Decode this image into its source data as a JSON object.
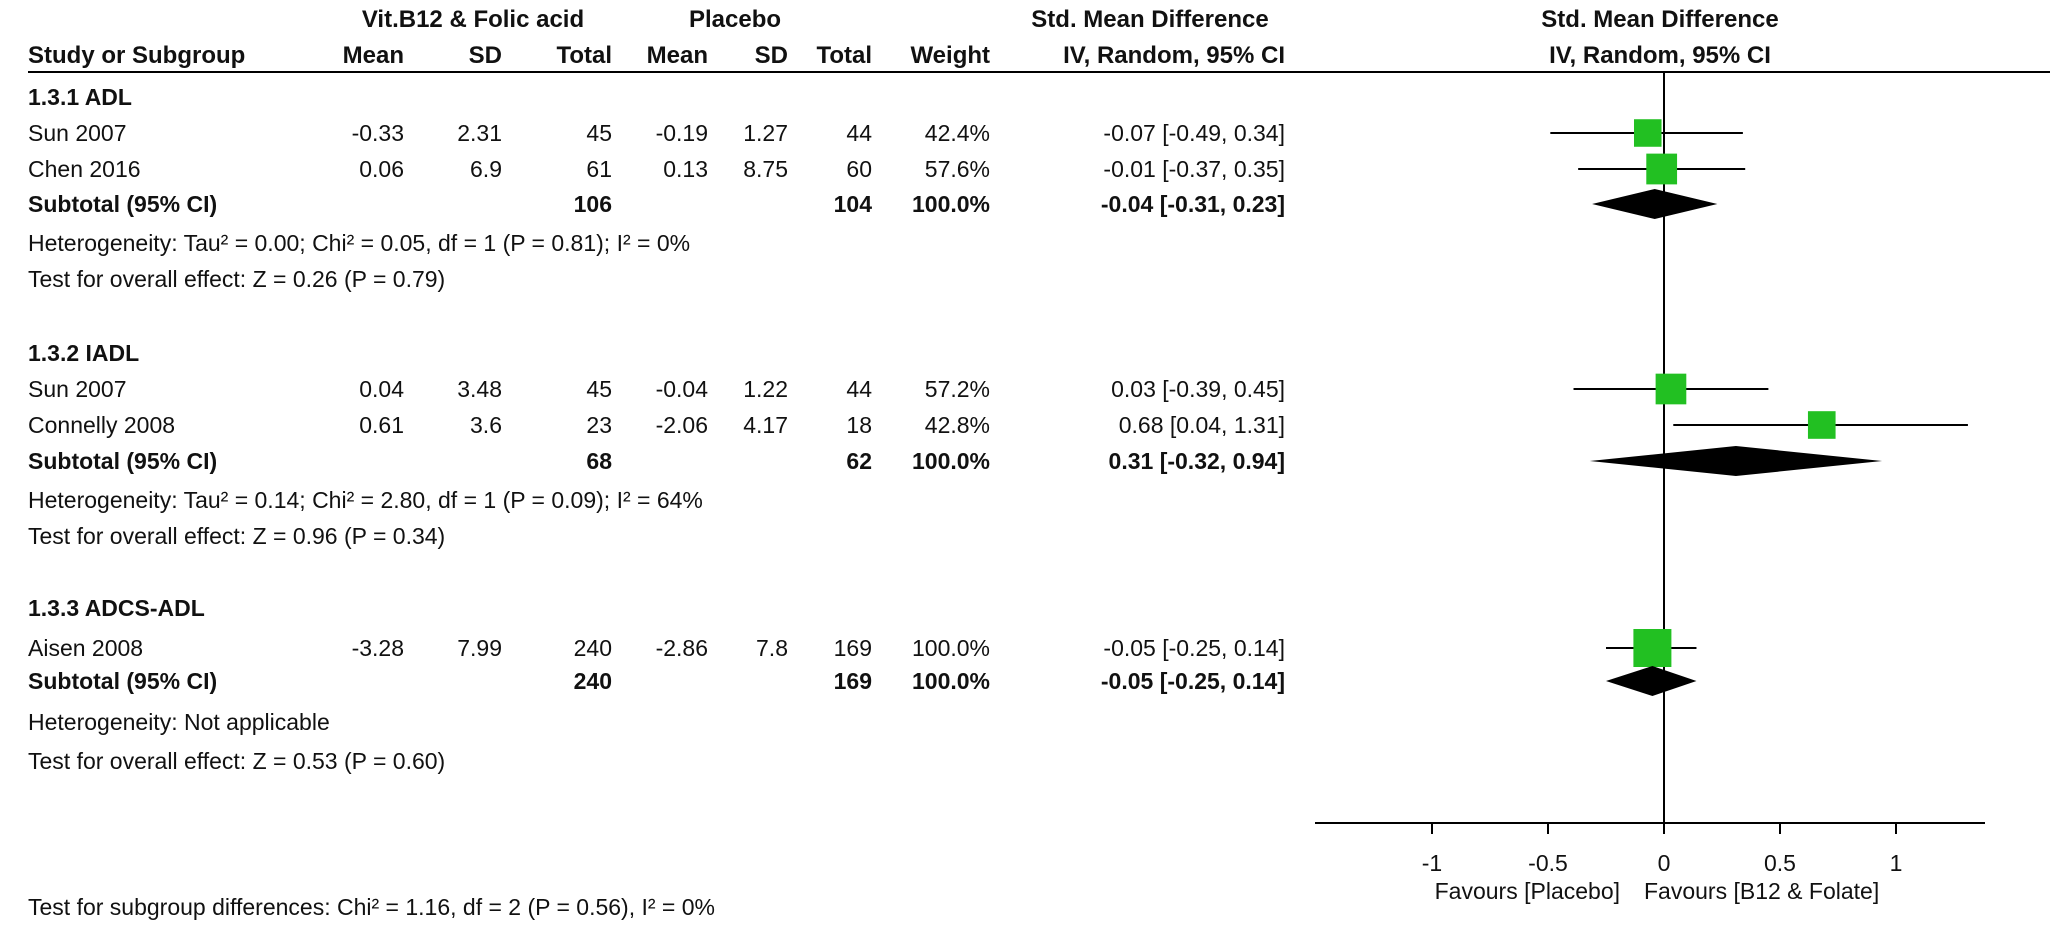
{
  "header": {
    "group1": "Vit.B12 & Folic acid",
    "group2": "Placebo",
    "smd_label": "Std. Mean Difference",
    "plot_title": "Std. Mean Difference",
    "plot_subtitle": "IV, Random, 95% CI",
    "cols": {
      "study": "Study or Subgroup",
      "mean1": "Mean",
      "sd1": "SD",
      "total1": "Total",
      "mean2": "Mean",
      "sd2": "SD",
      "total2": "Total",
      "weight": "Weight",
      "ci": "IV, Random, 95% CI"
    }
  },
  "groups": [
    {
      "title": "1.3.1 ADL",
      "studies": [
        {
          "name": "Sun 2007",
          "mean1": "-0.33",
          "sd1": "2.31",
          "total1": "45",
          "mean2": "-0.19",
          "sd2": "1.27",
          "total2": "44",
          "weight": "42.4%",
          "ci_text": "-0.07 [-0.49, 0.34]"
        },
        {
          "name": "Chen 2016",
          "mean1": "0.06",
          "sd1": "6.9",
          "total1": "61",
          "mean2": "0.13",
          "sd2": "8.75",
          "total2": "60",
          "weight": "57.6%",
          "ci_text": "-0.01 [-0.37, 0.35]"
        }
      ],
      "subtotal": {
        "label": "Subtotal (95% CI)",
        "total1": "106",
        "total2": "104",
        "weight": "100.0%",
        "ci_text": "-0.04 [-0.31, 0.23]"
      },
      "heterogeneity": "Heterogeneity: Tau² = 0.00; Chi² = 0.05, df = 1 (P = 0.81); I² = 0%",
      "overall": "Test for overall effect: Z = 0.26 (P = 0.79)"
    },
    {
      "title": "1.3.2 IADL",
      "studies": [
        {
          "name": "Sun 2007",
          "mean1": "0.04",
          "sd1": "3.48",
          "total1": "45",
          "mean2": "-0.04",
          "sd2": "1.22",
          "total2": "44",
          "weight": "57.2%",
          "ci_text": "0.03 [-0.39, 0.45]"
        },
        {
          "name": "Connelly 2008",
          "mean1": "0.61",
          "sd1": "3.6",
          "total1": "23",
          "mean2": "-2.06",
          "sd2": "4.17",
          "total2": "18",
          "weight": "42.8%",
          "ci_text": "0.68 [0.04, 1.31]"
        }
      ],
      "subtotal": {
        "label": "Subtotal (95% CI)",
        "total1": "68",
        "total2": "62",
        "weight": "100.0%",
        "ci_text": "0.31 [-0.32, 0.94]"
      },
      "heterogeneity": "Heterogeneity: Tau² = 0.14; Chi² = 2.80, df = 1 (P = 0.09); I² = 64%",
      "overall": "Test for overall effect: Z = 0.96 (P = 0.34)"
    },
    {
      "title": "1.3.3 ADCS-ADL",
      "studies": [
        {
          "name": "Aisen 2008",
          "mean1": "-3.28",
          "sd1": "7.99",
          "total1": "240",
          "mean2": "-2.86",
          "sd2": "7.8",
          "total2": "169",
          "weight": "100.0%",
          "ci_text": "-0.05 [-0.25, 0.14]"
        }
      ],
      "subtotal": {
        "label": "Subtotal (95% CI)",
        "total1": "240",
        "total2": "169",
        "weight": "100.0%",
        "ci_text": "-0.05 [-0.25, 0.14]"
      },
      "heterogeneity": "Heterogeneity: Not applicable",
      "overall": "Test for overall effect: Z = 0.53 (P = 0.60)"
    }
  ],
  "subgroup_test": "Test for subgroup differences: Chi² = 1.16, df = 2 (P = 0.56), I² = 0%",
  "axis": {
    "ticks": [
      "-1",
      "-0.5",
      "0",
      "0.5",
      "1"
    ],
    "favours_left": "Favours [Placebo]",
    "favours_right": "Favours [B12 & Folate]"
  },
  "colors": {
    "marker": "#22c022",
    "diamond": "#000000",
    "line": "#000000"
  },
  "chart_data": {
    "type": "forest",
    "title": "Std. Mean Difference",
    "subtitle": "IV, Random, 95% CI",
    "xlim": [
      -1.5,
      1.5
    ],
    "xticks": [
      -1,
      -0.5,
      0,
      0.5,
      1
    ],
    "series": [
      {
        "name": "Sun 2007",
        "group": "1.3.1 ADL",
        "est": -0.07,
        "lo": -0.49,
        "hi": 0.34,
        "weight": 42.4
      },
      {
        "name": "Chen 2016",
        "group": "1.3.1 ADL",
        "est": -0.01,
        "lo": -0.37,
        "hi": 0.35,
        "weight": 57.6
      },
      {
        "name": "Subtotal (95% CI)",
        "group": "1.3.1 ADL",
        "diamond": true,
        "est": -0.04,
        "lo": -0.31,
        "hi": 0.23
      },
      {
        "name": "Sun 2007",
        "group": "1.3.2 IADL",
        "est": 0.03,
        "lo": -0.39,
        "hi": 0.45,
        "weight": 57.2
      },
      {
        "name": "Connelly 2008",
        "group": "1.3.2 IADL",
        "est": 0.68,
        "lo": 0.04,
        "hi": 1.31,
        "weight": 42.8
      },
      {
        "name": "Subtotal (95% CI)",
        "group": "1.3.2 IADL",
        "diamond": true,
        "est": 0.31,
        "lo": -0.32,
        "hi": 0.94
      },
      {
        "name": "Aisen 2008",
        "group": "1.3.3 ADCS-ADL",
        "est": -0.05,
        "lo": -0.25,
        "hi": 0.14,
        "weight": 100.0
      },
      {
        "name": "Subtotal (95% CI)",
        "group": "1.3.3 ADCS-ADL",
        "diamond": true,
        "est": -0.05,
        "lo": -0.25,
        "hi": 0.14
      }
    ]
  }
}
